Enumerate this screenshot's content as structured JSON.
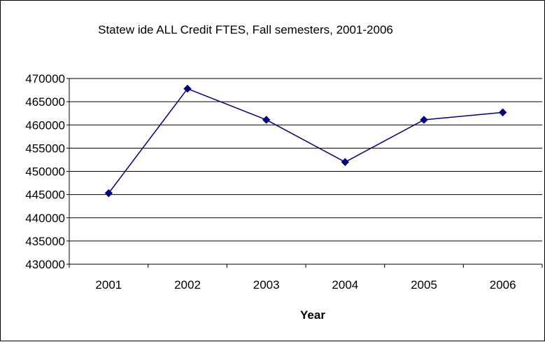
{
  "chart_data": {
    "type": "line",
    "title": "Statew ide ALL Credit FTES, Fall semesters, 2001-2006",
    "xlabel": "Year",
    "ylabel": "",
    "categories": [
      "2001",
      "2002",
      "2003",
      "2004",
      "2005",
      "2006"
    ],
    "series": [
      {
        "values": [
          445300,
          467800,
          461100,
          452000,
          461100,
          462700
        ]
      }
    ],
    "ylim": [
      430000,
      470000
    ],
    "yticks": [
      "470000",
      "465000",
      "460000",
      "455000",
      "450000",
      "445000",
      "440000",
      "435000",
      "430000"
    ],
    "grid": true,
    "legend": "none",
    "colors": {
      "line": "#000080",
      "marker": "#000080",
      "grid": "#000000",
      "background": "#ffffff"
    }
  }
}
